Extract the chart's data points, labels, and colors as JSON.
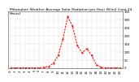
{
  "title": "Milwaukee Weather Average Solar Radiation per Hour W/m2 (Last 24 Hours)",
  "hours": [
    0,
    1,
    2,
    3,
    4,
    5,
    6,
    7,
    8,
    9,
    10,
    11,
    12,
    13,
    14,
    15,
    16,
    17,
    18,
    19,
    20,
    21,
    22,
    23
  ],
  "values": [
    2,
    2,
    2,
    2,
    2,
    2,
    2,
    5,
    10,
    30,
    80,
    180,
    320,
    260,
    140,
    95,
    120,
    80,
    20,
    5,
    2,
    2,
    2,
    2
  ],
  "line_color": "#ff0000",
  "bg_color": "#ffffff",
  "grid_color": "#999999",
  "ylim": [
    0,
    350
  ],
  "yticks": [
    0,
    50,
    100,
    150,
    200,
    250,
    300,
    350
  ],
  "ytick_labels": [
    "0",
    "50",
    "100",
    "150",
    "200",
    "250",
    "300",
    "350"
  ],
  "title_fontsize": 3.2,
  "tick_fontsize": 2.8
}
